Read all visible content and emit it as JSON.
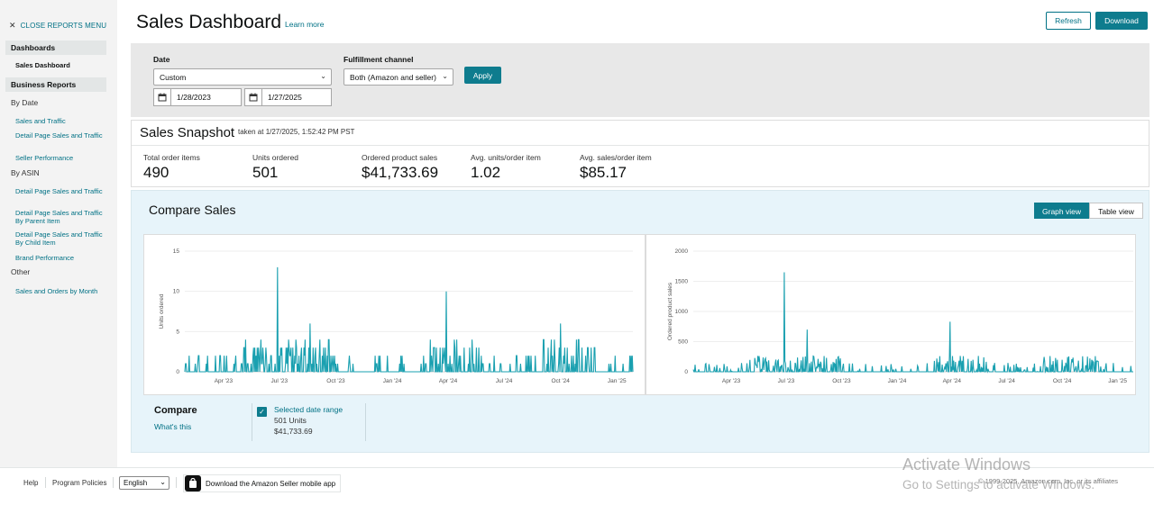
{
  "sidebar": {
    "close_label": "CLOSE REPORTS MENU",
    "groups": [
      {
        "label": "Dashboards"
      },
      {
        "label": "Business Reports"
      }
    ],
    "dashboards_item": "Sales Dashboard",
    "by_date_head": "By Date",
    "by_date_items": [
      "Sales and Traffic",
      "Detail Page Sales and Traffic",
      "Seller Performance"
    ],
    "by_asin_head": "By ASIN",
    "by_asin_items": [
      "Detail Page Sales and Traffic",
      "Detail Page Sales and Traffic By Parent Item",
      "Detail Page Sales and Traffic By Child Item",
      "Brand Performance"
    ],
    "other_head": "Other",
    "other_items": [
      "Sales and Orders by Month"
    ]
  },
  "header": {
    "title": "Sales Dashboard",
    "learn_more": "Learn more",
    "refresh": "Refresh",
    "download": "Download"
  },
  "filters": {
    "date_label": "Date",
    "date_preset": "Custom",
    "start_date": "1/28/2023",
    "end_date": "1/27/2025",
    "channel_label": "Fulfillment channel",
    "channel_value": "Both (Amazon and seller)",
    "apply": "Apply"
  },
  "snapshot": {
    "title": "Sales Snapshot",
    "taken": "taken at 1/27/2025, 1:52:42 PM PST",
    "metrics": [
      {
        "label": "Total order items",
        "value": "490"
      },
      {
        "label": "Units ordered",
        "value": "501"
      },
      {
        "label": "Ordered product sales",
        "value": "$41,733.69"
      },
      {
        "label": "Avg. units/order item",
        "value": "1.02"
      },
      {
        "label": "Avg. sales/order item",
        "value": "$85.17"
      }
    ]
  },
  "compare": {
    "title": "Compare Sales",
    "graph_view": "Graph view",
    "table_view": "Table view",
    "footer_title": "Compare",
    "whats_this": "What's this",
    "range_label": "Selected date range",
    "range_units": "501 Units",
    "range_sales": "$41,733.69"
  },
  "chart_data": [
    {
      "type": "line",
      "ylabel": "Units ordered",
      "ylim": [
        0,
        15
      ],
      "yticks": [
        "15",
        "10",
        "5",
        "0"
      ],
      "xticks": [
        "Apr '23",
        "Jul '23",
        "Oct '23",
        "Jan '24",
        "Apr '24",
        "Jul '24",
        "Oct '24",
        "Jan '25"
      ],
      "color": "#1aa0b0",
      "x_range": [
        "2023-01-28",
        "2025-01-27"
      ],
      "peaks": [
        {
          "x": "2023-06-28",
          "y": 13
        },
        {
          "x": "2024-03-29",
          "y": 10
        },
        {
          "x": "2024-10-01",
          "y": 6
        },
        {
          "x": "2023-08-20",
          "y": 6
        }
      ]
    },
    {
      "type": "line",
      "ylabel": "Ordered product sales",
      "ylim": [
        0,
        2000
      ],
      "yticks": [
        "2000",
        "1500",
        "1000",
        "500",
        "0"
      ],
      "xticks": [
        "Apr '23",
        "Jul '23",
        "Oct '23",
        "Jan '24",
        "Apr '24",
        "Jul '24",
        "Oct '24",
        "Jan '25"
      ],
      "color": "#1aa0b0",
      "x_range": [
        "2023-01-28",
        "2025-01-27"
      ],
      "peaks": [
        {
          "x": "2023-06-28",
          "y": 1650
        },
        {
          "x": "2024-03-29",
          "y": 830
        },
        {
          "x": "2023-08-05",
          "y": 700
        },
        {
          "x": "2024-10-01",
          "y": 200
        }
      ]
    }
  ],
  "footer": {
    "help": "Help",
    "policies": "Program Policies",
    "language": "English",
    "app_download": "Download the Amazon Seller mobile app",
    "copyright": "© 1999-2025, Amazon.com, Inc. or its affiliates"
  },
  "watermark": {
    "line1": "Activate Windows",
    "line2": "Go to Settings to activate Windows."
  }
}
